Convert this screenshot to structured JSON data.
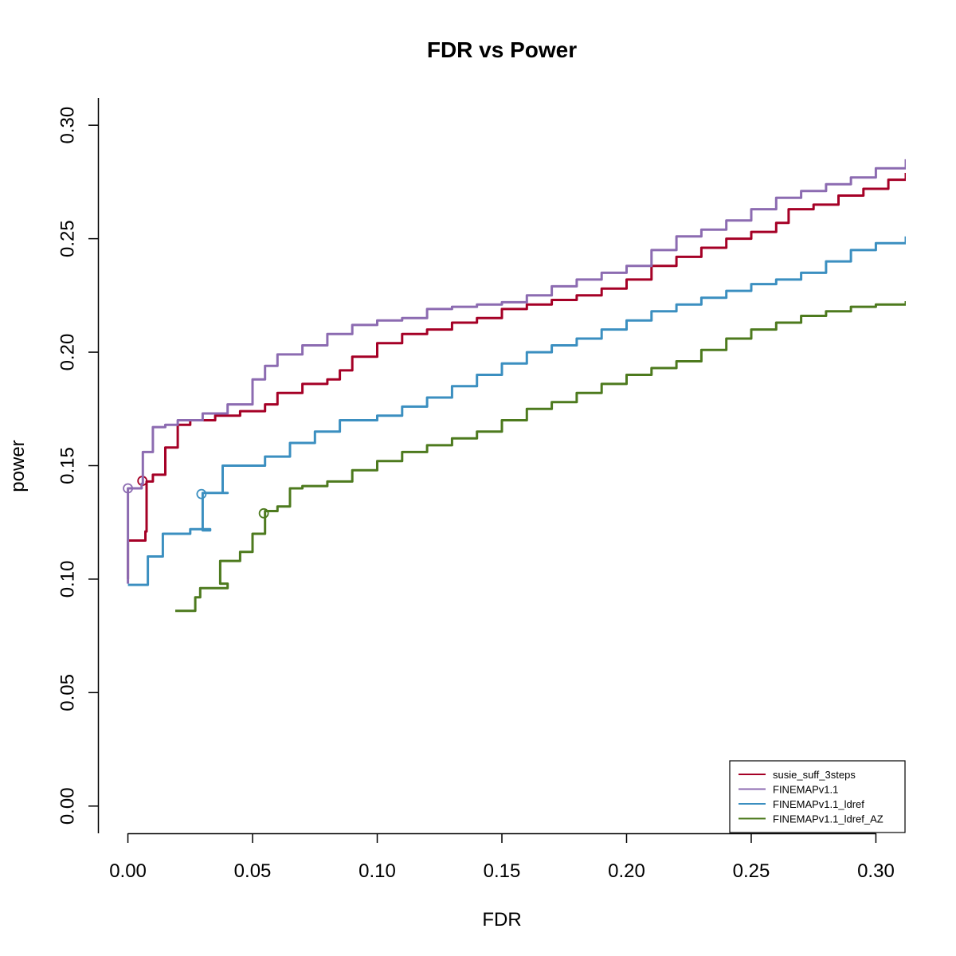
{
  "chart_data": {
    "type": "line",
    "title": "FDR vs Power",
    "xlabel": "FDR",
    "ylabel": "power",
    "xlim": [
      -0.012,
      0.312
    ],
    "ylim": [
      -0.012,
      0.312
    ],
    "xticks": [
      "0.00",
      "0.05",
      "0.10",
      "0.15",
      "0.20",
      "0.25",
      "0.30"
    ],
    "yticks": [
      "0.00",
      "0.05",
      "0.10",
      "0.15",
      "0.20",
      "0.25",
      "0.30"
    ],
    "grid": false,
    "legend_position": "bottom-right",
    "series": [
      {
        "name": "susie_suff_3steps",
        "color": "#A50026",
        "marker_point": [
          0.0058,
          0.1433
        ],
        "x": [
          0.0,
          0.0,
          0.007,
          0.0075,
          0.01,
          0.015,
          0.02,
          0.025,
          0.035,
          0.045,
          0.055,
          0.06,
          0.07,
          0.08,
          0.085,
          0.09,
          0.1,
          0.11,
          0.12,
          0.13,
          0.14,
          0.15,
          0.16,
          0.17,
          0.18,
          0.19,
          0.2,
          0.21,
          0.22,
          0.23,
          0.24,
          0.25,
          0.26,
          0.265,
          0.275,
          0.285,
          0.295,
          0.305,
          0.312
        ],
        "y": [
          0.1,
          0.117,
          0.121,
          0.143,
          0.146,
          0.158,
          0.168,
          0.17,
          0.172,
          0.174,
          0.177,
          0.182,
          0.186,
          0.188,
          0.192,
          0.198,
          0.204,
          0.208,
          0.21,
          0.213,
          0.215,
          0.219,
          0.221,
          0.223,
          0.225,
          0.228,
          0.232,
          0.238,
          0.242,
          0.246,
          0.25,
          0.253,
          0.257,
          0.263,
          0.265,
          0.269,
          0.272,
          0.276,
          0.279
        ]
      },
      {
        "name": "FINEMAPv1.1",
        "color": "#8C6BB1",
        "marker_point": [
          0.0,
          0.14
        ],
        "x": [
          0.0,
          0.0,
          0.0055,
          0.006,
          0.01,
          0.015,
          0.02,
          0.03,
          0.04,
          0.05,
          0.055,
          0.06,
          0.07,
          0.08,
          0.09,
          0.1,
          0.11,
          0.12,
          0.13,
          0.14,
          0.15,
          0.16,
          0.17,
          0.18,
          0.19,
          0.2,
          0.21,
          0.22,
          0.23,
          0.24,
          0.25,
          0.26,
          0.27,
          0.28,
          0.29,
          0.3,
          0.312
        ],
        "y": [
          0.098,
          0.14,
          0.142,
          0.156,
          0.167,
          0.168,
          0.17,
          0.173,
          0.177,
          0.188,
          0.194,
          0.199,
          0.203,
          0.208,
          0.212,
          0.214,
          0.215,
          0.219,
          0.22,
          0.221,
          0.222,
          0.225,
          0.229,
          0.232,
          0.235,
          0.238,
          0.245,
          0.251,
          0.254,
          0.258,
          0.263,
          0.268,
          0.271,
          0.274,
          0.277,
          0.281,
          0.285
        ]
      },
      {
        "name": "FINEMAPv1.1_ldref",
        "color": "#3B8FC0",
        "marker_point": [
          0.0295,
          0.1375
        ],
        "x": [
          0.0,
          0.008,
          0.008,
          0.014,
          0.02,
          0.025,
          0.033,
          0.03,
          0.038,
          0.04,
          0.038,
          0.05,
          0.055,
          0.065,
          0.075,
          0.085,
          0.1,
          0.11,
          0.12,
          0.13,
          0.14,
          0.15,
          0.16,
          0.17,
          0.18,
          0.19,
          0.2,
          0.21,
          0.22,
          0.23,
          0.24,
          0.25,
          0.26,
          0.27,
          0.28,
          0.29,
          0.3,
          0.312
        ],
        "y": [
          0.0975,
          0.104,
          0.11,
          0.12,
          0.12,
          0.122,
          0.1215,
          0.138,
          0.138,
          0.138,
          0.15,
          0.15,
          0.154,
          0.16,
          0.165,
          0.17,
          0.172,
          0.176,
          0.18,
          0.185,
          0.19,
          0.195,
          0.2,
          0.203,
          0.206,
          0.21,
          0.214,
          0.218,
          0.221,
          0.224,
          0.227,
          0.23,
          0.232,
          0.235,
          0.24,
          0.245,
          0.248,
          0.251
        ]
      },
      {
        "name": "FINEMAPv1.1_ldref_AZ",
        "color": "#4D7A1E",
        "marker_point": [
          0.0545,
          0.129
        ],
        "x": [
          0.019,
          0.027,
          0.029,
          0.04,
          0.037,
          0.045,
          0.05,
          0.055,
          0.06,
          0.065,
          0.07,
          0.08,
          0.09,
          0.1,
          0.11,
          0.12,
          0.13,
          0.14,
          0.15,
          0.16,
          0.17,
          0.18,
          0.19,
          0.2,
          0.21,
          0.22,
          0.23,
          0.24,
          0.25,
          0.26,
          0.27,
          0.28,
          0.29,
          0.3,
          0.312
        ],
        "y": [
          0.086,
          0.092,
          0.096,
          0.098,
          0.108,
          0.112,
          0.12,
          0.13,
          0.132,
          0.14,
          0.141,
          0.143,
          0.148,
          0.152,
          0.156,
          0.159,
          0.162,
          0.165,
          0.17,
          0.175,
          0.178,
          0.182,
          0.186,
          0.19,
          0.193,
          0.196,
          0.201,
          0.206,
          0.21,
          0.213,
          0.216,
          0.218,
          0.22,
          0.221,
          0.2225
        ]
      }
    ]
  }
}
